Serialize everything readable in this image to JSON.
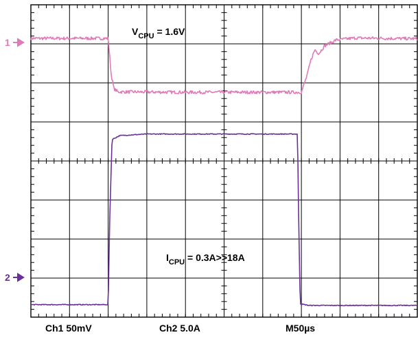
{
  "chart_data": {
    "type": "line",
    "title": "",
    "xlabel": "",
    "ylabel": "",
    "grid": true,
    "divisions": {
      "x": 10,
      "y": 8
    },
    "xlim": [
      0,
      10
    ],
    "x_units": "divisions",
    "y_units": "divisions",
    "ylim": [
      0,
      8
    ],
    "colors": {
      "ch1": "#e07ab8",
      "ch2": "#6a2f9a",
      "grid": "#000000"
    },
    "series": [
      {
        "name": "",
        "channel": 1,
        "marker": "1",
        "x": [
          0,
          2.0,
          2.08,
          2.15,
          2.25,
          4.0,
          7.0,
          7.15,
          7.25,
          7.35,
          7.45,
          7.6,
          7.9,
          8.4,
          10
        ],
        "y": [
          7.14,
          7.14,
          6.2,
          5.85,
          5.77,
          5.76,
          5.76,
          6.2,
          6.6,
          6.85,
          6.75,
          6.95,
          7.1,
          7.15,
          7.13
        ],
        "noise": 0.04
      },
      {
        "name": "",
        "channel": 2,
        "marker": "2",
        "x": [
          0,
          2.0,
          2.04,
          2.1,
          2.3,
          3.0,
          6.9,
          6.93,
          6.97,
          7.2,
          10
        ],
        "y": [
          0.32,
          0.32,
          2.5,
          4.55,
          4.65,
          4.69,
          4.69,
          2.5,
          0.34,
          0.3,
          0.3
        ],
        "noise": 0.01
      }
    ],
    "annotations": [
      {
        "main": "V",
        "sub": "CPU",
        "rest": " = 1.6V"
      },
      {
        "main": "I",
        "sub": "CPU",
        "rest": " = 0.3A>>18A"
      }
    ],
    "bottom_labels": [
      "Ch1 50mV",
      "Ch2 5.0A",
      "M50µs"
    ]
  }
}
